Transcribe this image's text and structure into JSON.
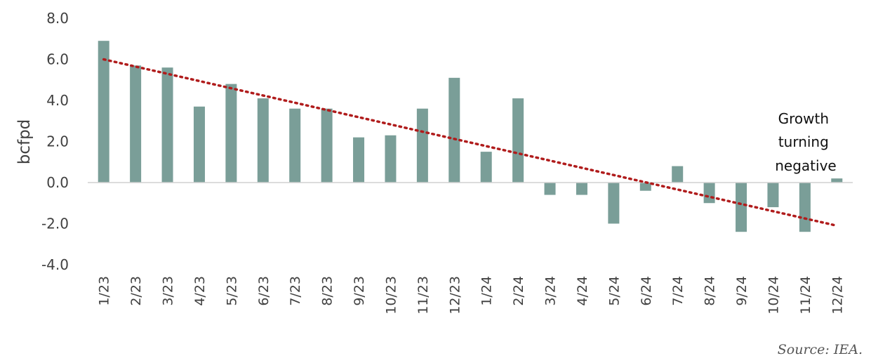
{
  "chart_data": {
    "type": "bar",
    "ylabel": "bcfpd",
    "xlabel": "",
    "ylim": [
      -4.0,
      8.0
    ],
    "yticks": [
      "8.0",
      "6.0",
      "4.0",
      "2.0",
      "0.0",
      "-2.0",
      "-4.0"
    ],
    "ytick_values": [
      8,
      6,
      4,
      2,
      0,
      -2,
      -4
    ],
    "categories": [
      "1/23",
      "2/23",
      "3/23",
      "4/23",
      "5/23",
      "6/23",
      "7/23",
      "8/23",
      "9/23",
      "10/23",
      "11/23",
      "12/23",
      "1/24",
      "2/24",
      "3/24",
      "4/24",
      "5/24",
      "6/24",
      "7/24",
      "8/24",
      "9/24",
      "10/24",
      "11/24",
      "12/24"
    ],
    "values": [
      6.9,
      5.7,
      5.6,
      3.7,
      4.8,
      4.1,
      3.6,
      3.6,
      2.2,
      2.3,
      3.6,
      5.1,
      1.5,
      4.1,
      -0.6,
      -0.6,
      -2.0,
      -0.4,
      0.8,
      -1.0,
      -2.4,
      -1.2,
      -2.4,
      0.2
    ],
    "trendline": {
      "style": "dotted",
      "start": 6.0,
      "end": -2.1
    },
    "annotation": {
      "lines": [
        "Growth",
        "turning",
        "negative"
      ]
    },
    "grid": false,
    "colors": {
      "bar": "#7a9e98",
      "trend": "#b01c1c",
      "axis": "#d0d0d0"
    }
  },
  "source": "Source: IEA."
}
